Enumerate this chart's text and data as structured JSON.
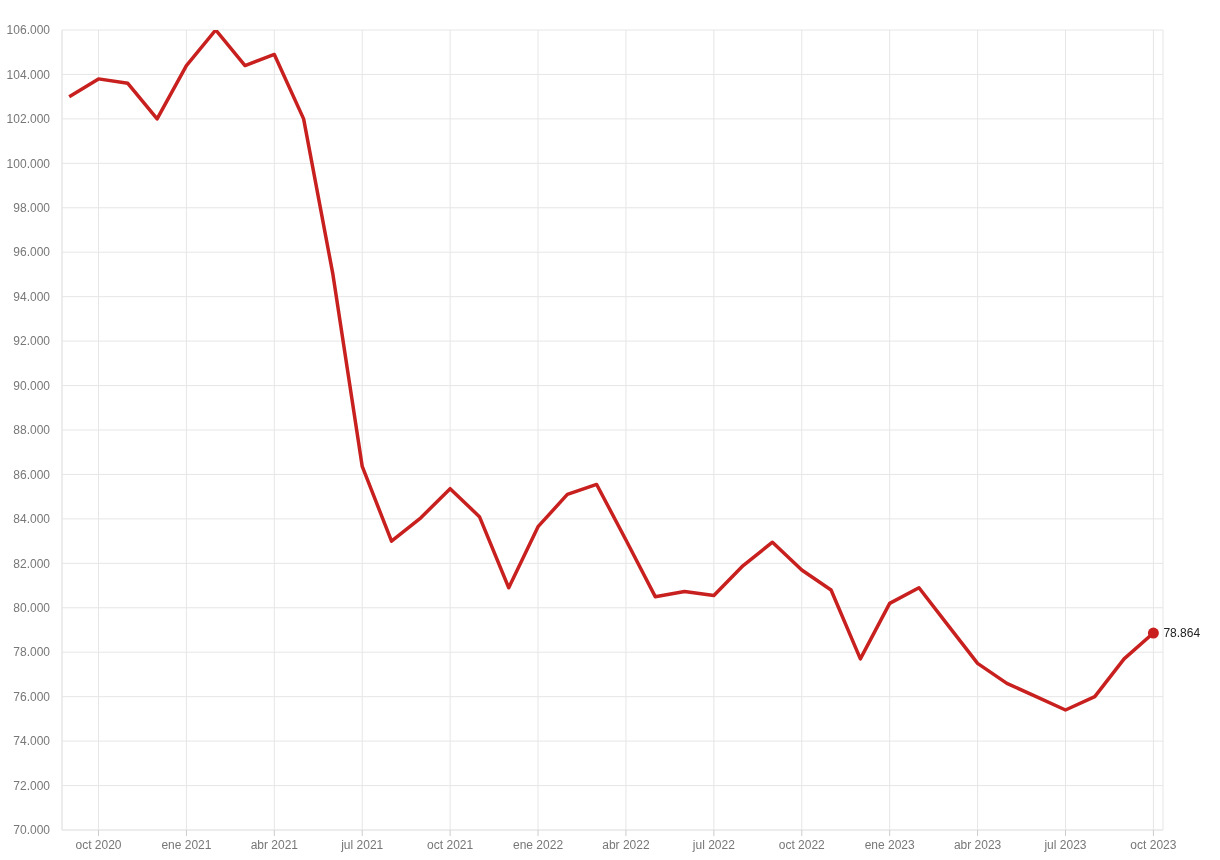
{
  "chart_data": {
    "type": "line",
    "x": [
      "2020-09",
      "2020-10",
      "2020-11",
      "2020-12",
      "2021-01",
      "2021-02",
      "2021-03",
      "2021-04",
      "2021-05",
      "2021-06",
      "2021-07",
      "2021-08",
      "2021-09",
      "2021-10",
      "2021-11",
      "2021-12",
      "2022-01",
      "2022-02",
      "2022-03",
      "2022-04",
      "2022-05",
      "2022-06",
      "2022-07",
      "2022-08",
      "2022-09",
      "2022-10",
      "2022-11",
      "2022-12",
      "2023-01",
      "2023-02",
      "2023-03",
      "2023-04",
      "2023-05",
      "2023-06",
      "2023-07",
      "2023-08",
      "2023-09",
      "2023-10"
    ],
    "series": [
      {
        "color": "#c8201f",
        "values": [
          103000,
          103800,
          103600,
          102000,
          104400,
          106000,
          104400,
          104900,
          102000,
          95000,
          86360,
          83000,
          84050,
          85360,
          84100,
          80900,
          83650,
          85100,
          85550,
          83050,
          80500,
          80730,
          80550,
          81900,
          82950,
          81700,
          80800,
          77700,
          80200,
          80900,
          79200,
          77500,
          76600,
          76000,
          75400,
          76000,
          77700,
          78864
        ],
        "value_labels": [
          null,
          null,
          null,
          null,
          null,
          null,
          null,
          null,
          null,
          null,
          null,
          null,
          null,
          null,
          null,
          null,
          null,
          null,
          null,
          null,
          null,
          null,
          null,
          null,
          null,
          null,
          null,
          null,
          null,
          null,
          null,
          null,
          null,
          null,
          null,
          null,
          null,
          "78.864"
        ]
      }
    ],
    "xlim": [
      "2020-08-24",
      "2023-10-11"
    ],
    "xticks": [
      {
        "value": "2020-10",
        "label": "oct 2020"
      },
      {
        "value": "2021-01",
        "label": "ene 2021"
      },
      {
        "value": "2021-04",
        "label": "abr 2021"
      },
      {
        "value": "2021-07",
        "label": "jul 2021"
      },
      {
        "value": "2021-10",
        "label": "oct 2021"
      },
      {
        "value": "2022-01",
        "label": "ene 2022"
      },
      {
        "value": "2022-04",
        "label": "abr 2022"
      },
      {
        "value": "2022-07",
        "label": "jul 2022"
      },
      {
        "value": "2022-10",
        "label": "oct 2022"
      },
      {
        "value": "2023-01",
        "label": "ene 2023"
      },
      {
        "value": "2023-04",
        "label": "abr 2023"
      },
      {
        "value": "2023-07",
        "label": "jul 2023"
      },
      {
        "value": "2023-10",
        "label": "oct 2023"
      }
    ],
    "ylim": [
      70000,
      106000
    ],
    "yticks": [
      {
        "value": 70000,
        "label": "70.000"
      },
      {
        "value": 72000,
        "label": "72.000"
      },
      {
        "value": 74000,
        "label": "74.000"
      },
      {
        "value": 76000,
        "label": "76.000"
      },
      {
        "value": 78000,
        "label": "78.000"
      },
      {
        "value": 80000,
        "label": "80.000"
      },
      {
        "value": 82000,
        "label": "82.000"
      },
      {
        "value": 84000,
        "label": "84.000"
      },
      {
        "value": 86000,
        "label": "86.000"
      },
      {
        "value": 88000,
        "label": "88.000"
      },
      {
        "value": 90000,
        "label": "90.000"
      },
      {
        "value": 92000,
        "label": "92.000"
      },
      {
        "value": 94000,
        "label": "94.000"
      },
      {
        "value": 96000,
        "label": "96.000"
      },
      {
        "value": 98000,
        "label": "98.000"
      },
      {
        "value": 100000,
        "label": "100.000"
      },
      {
        "value": 102000,
        "label": "102.000"
      },
      {
        "value": 104000,
        "label": "104.000"
      },
      {
        "value": 106000,
        "label": "106.000"
      }
    ],
    "grid": true,
    "legend": false,
    "marker": "none",
    "line_style": "solid"
  }
}
